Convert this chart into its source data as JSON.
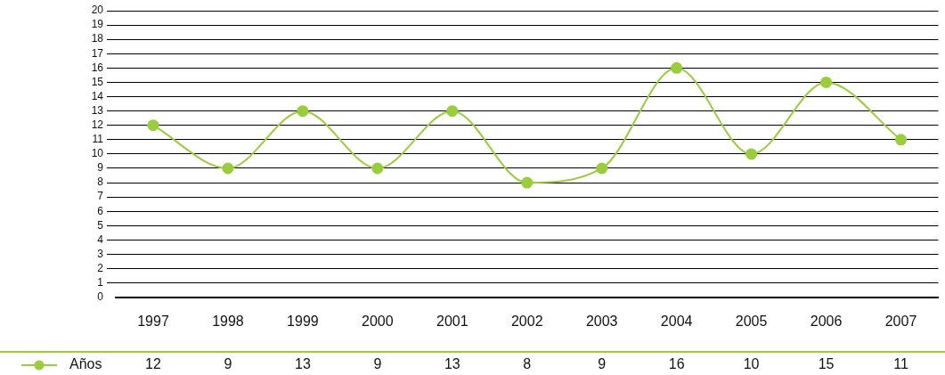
{
  "chart_data": {
    "type": "line",
    "categories": [
      "1997",
      "1998",
      "1999",
      "2000",
      "2001",
      "2002",
      "2003",
      "2004",
      "2005",
      "2006",
      "2007"
    ],
    "series": [
      {
        "name": "Años",
        "color": "#9acd3c",
        "values": [
          12,
          9,
          13,
          9,
          13,
          8,
          9,
          16,
          10,
          15,
          11
        ]
      }
    ],
    "ylim": [
      0,
      20
    ],
    "yticks": [
      0,
      1,
      2,
      3,
      4,
      5,
      6,
      7,
      8,
      9,
      10,
      11,
      12,
      13,
      14,
      15,
      16,
      17,
      18,
      19,
      20
    ],
    "grid": "y",
    "legend": "bottom",
    "marker": "circle",
    "line_style": "solid",
    "data_labels": true
  }
}
